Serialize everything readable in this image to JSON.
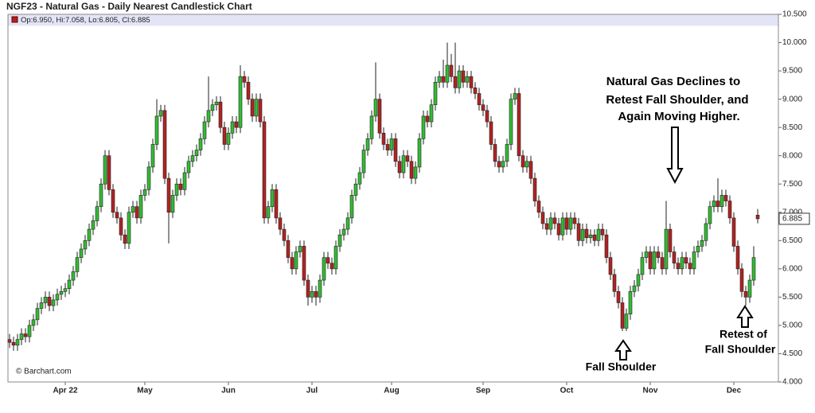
{
  "chart_data": {
    "type": "candlestick",
    "title": "NGF23 - Natural Gas - Daily Nearest Candlestick Chart",
    "legend": "Op:6.950, Hi:7.058, Lo:6.805, Cl:6.885",
    "watermark": "© Barchart.com",
    "annotations": [
      {
        "lines": [
          "Natural Gas Declines to",
          "Retest Fall Shoulder, and",
          "Again Moving Higher."
        ]
      },
      {
        "lines": [
          "Fall Shoulder"
        ]
      },
      {
        "lines": [
          "Retest of",
          "Fall Shoulder"
        ]
      }
    ],
    "up_color": "#33bb33",
    "down_color": "#b22222",
    "grid": false,
    "ylim": [
      4.0,
      10.5
    ],
    "yticks": [
      {
        "value": 4.0,
        "label": "4.000"
      },
      {
        "value": 4.5,
        "label": "4.500"
      },
      {
        "value": 5.0,
        "label": "5.000"
      },
      {
        "value": 5.5,
        "label": "5.500"
      },
      {
        "value": 6.0,
        "label": "6.000"
      },
      {
        "value": 6.5,
        "label": "6.500"
      },
      {
        "value": 7.0,
        "label": "7.000"
      },
      {
        "value": 7.5,
        "label": "7.500"
      },
      {
        "value": 8.0,
        "label": "8.000"
      },
      {
        "value": 8.5,
        "label": "8.500"
      },
      {
        "value": 9.0,
        "label": "9.000"
      },
      {
        "value": 9.5,
        "label": "9.500"
      },
      {
        "value": 10.0,
        "label": "10.000"
      },
      {
        "value": 10.5,
        "label": "10.500"
      }
    ],
    "categories": [
      null,
      null,
      null,
      null,
      null,
      null,
      null,
      null,
      null,
      null,
      null,
      null,
      null,
      null,
      "Apr 22",
      null,
      null,
      null,
      null,
      null,
      null,
      null,
      null,
      null,
      null,
      null,
      null,
      null,
      null,
      null,
      null,
      null,
      null,
      null,
      "May",
      null,
      null,
      null,
      null,
      null,
      null,
      null,
      null,
      null,
      null,
      null,
      null,
      null,
      null,
      null,
      null,
      null,
      null,
      null,
      null,
      "Jun",
      null,
      null,
      null,
      null,
      null,
      null,
      null,
      null,
      null,
      null,
      null,
      null,
      null,
      null,
      null,
      null,
      null,
      null,
      null,
      null,
      "Jul",
      null,
      null,
      null,
      null,
      null,
      null,
      null,
      null,
      null,
      null,
      null,
      null,
      null,
      null,
      null,
      null,
      null,
      null,
      null,
      "Aug",
      null,
      null,
      null,
      null,
      null,
      null,
      null,
      null,
      null,
      null,
      null,
      null,
      null,
      null,
      null,
      null,
      null,
      null,
      null,
      null,
      null,
      null,
      "Sep",
      null,
      null,
      null,
      null,
      null,
      null,
      null,
      null,
      null,
      null,
      null,
      null,
      null,
      null,
      null,
      null,
      null,
      null,
      null,
      null,
      "Oct",
      null,
      null,
      null,
      null,
      null,
      null,
      null,
      null,
      null,
      null,
      null,
      null,
      null,
      null,
      null,
      null,
      null,
      null,
      null,
      null,
      "Nov",
      null,
      null,
      null,
      null,
      null,
      null,
      null,
      null,
      null,
      null,
      null,
      null,
      null,
      null,
      null,
      null,
      null,
      null,
      null,
      null,
      "Dec",
      null,
      null,
      null,
      null,
      null,
      null
    ],
    "open": [
      4.75,
      4.7,
      4.65,
      4.75,
      4.85,
      4.8,
      5.0,
      5.1,
      5.3,
      5.4,
      5.5,
      5.35,
      5.45,
      5.55,
      5.6,
      5.65,
      5.8,
      5.95,
      6.2,
      6.35,
      6.5,
      6.7,
      6.85,
      7.1,
      7.5,
      8.0,
      7.4,
      7.0,
      6.9,
      6.6,
      6.45,
      7.0,
      7.1,
      6.9,
      7.3,
      7.4,
      7.8,
      8.2,
      8.7,
      8.8,
      7.6,
      7.0,
      7.3,
      7.5,
      7.4,
      7.7,
      7.9,
      8.0,
      8.1,
      8.3,
      8.6,
      8.8,
      8.9,
      8.95,
      8.5,
      8.2,
      8.4,
      8.6,
      8.5,
      9.4,
      9.3,
      9.0,
      8.7,
      9.0,
      8.6,
      6.9,
      7.1,
      7.4,
      6.9,
      6.7,
      6.5,
      6.2,
      6.0,
      6.3,
      6.4,
      5.8,
      5.5,
      5.6,
      5.5,
      5.8,
      6.2,
      6.1,
      6.0,
      6.4,
      6.6,
      6.7,
      6.9,
      7.3,
      7.5,
      7.7,
      8.1,
      8.3,
      8.7,
      9.0,
      8.4,
      8.2,
      8.1,
      8.3,
      7.9,
      7.7,
      8.0,
      7.9,
      7.6,
      7.8,
      8.3,
      8.7,
      8.6,
      8.9,
      9.3,
      9.4,
      9.3,
      9.6,
      9.4,
      9.2,
      9.5,
      9.3,
      9.4,
      9.2,
      9.1,
      8.9,
      8.8,
      8.6,
      8.2,
      7.9,
      7.8,
      7.9,
      8.2,
      9.0,
      9.1,
      8.0,
      7.8,
      7.9,
      7.6,
      7.2,
      7.0,
      6.8,
      6.7,
      6.9,
      6.8,
      6.6,
      6.9,
      6.7,
      6.9,
      6.8,
      6.5,
      6.7,
      6.55,
      6.6,
      6.5,
      6.7,
      6.6,
      6.2,
      5.9,
      5.6,
      5.4,
      4.95,
      5.2,
      5.6,
      5.7,
      5.9,
      6.2,
      6.3,
      6.0,
      6.3,
      6.2,
      6.0,
      6.7,
      6.3,
      6.1,
      6.0,
      6.2,
      6.1,
      6.0,
      6.3,
      6.4,
      6.5,
      6.8,
      7.1,
      7.2,
      7.1,
      7.3,
      7.2,
      6.9,
      6.4,
      6.0,
      5.6,
      5.5,
      5.8,
      6.95
    ],
    "high": [
      4.85,
      4.8,
      4.85,
      4.95,
      4.95,
      5.1,
      5.2,
      5.4,
      5.5,
      5.6,
      5.6,
      5.55,
      5.65,
      5.7,
      5.75,
      5.9,
      6.05,
      6.3,
      6.45,
      6.6,
      6.8,
      6.95,
      7.2,
      7.6,
      8.1,
      8.1,
      7.5,
      7.1,
      7.0,
      6.7,
      7.1,
      7.2,
      7.2,
      7.4,
      7.5,
      7.9,
      8.3,
      9.0,
      8.9,
      8.9,
      7.7,
      7.4,
      7.6,
      7.6,
      7.8,
      8.0,
      8.1,
      8.2,
      8.4,
      8.7,
      9.4,
      9.0,
      9.05,
      9.05,
      8.6,
      8.5,
      8.7,
      8.7,
      9.6,
      9.5,
      9.4,
      9.1,
      9.1,
      9.1,
      8.7,
      7.2,
      7.5,
      7.5,
      7.0,
      6.8,
      6.6,
      6.3,
      6.4,
      6.5,
      6.5,
      5.9,
      5.7,
      5.7,
      5.9,
      6.3,
      6.3,
      6.2,
      6.5,
      6.7,
      6.8,
      7.0,
      7.4,
      7.6,
      7.8,
      8.2,
      8.4,
      8.8,
      9.65,
      9.1,
      8.5,
      8.3,
      8.4,
      8.4,
      8.0,
      8.1,
      8.1,
      8.0,
      7.9,
      8.4,
      8.8,
      8.8,
      9.0,
      9.4,
      9.5,
      9.7,
      10.0,
      9.8,
      10.0,
      9.6,
      9.6,
      9.5,
      9.5,
      9.3,
      9.2,
      9.0,
      8.9,
      8.7,
      8.3,
      8.0,
      8.0,
      8.3,
      9.1,
      9.2,
      9.2,
      8.1,
      8.0,
      8.0,
      7.7,
      7.3,
      7.1,
      6.9,
      7.0,
      7.0,
      6.9,
      7.0,
      7.0,
      7.0,
      7.0,
      6.9,
      6.8,
      6.8,
      6.7,
      6.7,
      6.8,
      6.8,
      6.7,
      6.3,
      6.0,
      5.7,
      5.5,
      5.3,
      5.7,
      5.8,
      6.0,
      6.3,
      6.4,
      6.4,
      6.4,
      6.4,
      6.3,
      7.2,
      6.8,
      6.4,
      6.2,
      6.3,
      6.3,
      6.2,
      6.4,
      6.5,
      6.6,
      6.9,
      7.2,
      7.3,
      7.6,
      7.4,
      7.4,
      7.3,
      7.0,
      6.5,
      6.1,
      5.7,
      5.9,
      6.4,
      7.058
    ],
    "low": [
      4.6,
      4.55,
      4.55,
      4.65,
      4.7,
      4.7,
      4.9,
      5.0,
      5.2,
      5.3,
      5.25,
      5.25,
      5.35,
      5.45,
      5.5,
      5.55,
      5.7,
      5.85,
      6.1,
      6.25,
      6.4,
      6.6,
      6.75,
      7.0,
      7.4,
      7.3,
      6.9,
      6.8,
      6.5,
      6.35,
      6.35,
      6.9,
      6.8,
      6.8,
      7.2,
      7.3,
      7.7,
      8.1,
      8.6,
      7.5,
      6.45,
      6.9,
      7.2,
      7.3,
      7.3,
      7.6,
      7.8,
      7.9,
      8.0,
      8.2,
      8.5,
      8.7,
      8.8,
      8.4,
      8.1,
      8.1,
      8.3,
      8.4,
      8.4,
      9.2,
      8.9,
      8.6,
      8.6,
      8.5,
      6.8,
      6.8,
      7.0,
      6.8,
      6.6,
      6.4,
      6.1,
      5.9,
      5.9,
      6.2,
      5.7,
      5.35,
      5.4,
      5.35,
      5.4,
      5.7,
      6.0,
      5.9,
      5.9,
      6.3,
      6.5,
      6.6,
      6.8,
      7.2,
      7.4,
      7.6,
      8.0,
      8.2,
      8.6,
      8.3,
      8.1,
      8.0,
      8.0,
      7.8,
      7.6,
      7.6,
      7.8,
      7.5,
      7.5,
      7.7,
      8.2,
      8.5,
      8.5,
      8.8,
      9.2,
      9.2,
      9.2,
      9.3,
      9.1,
      9.1,
      9.2,
      9.2,
      9.1,
      9.0,
      8.8,
      8.7,
      8.5,
      8.1,
      7.8,
      7.7,
      7.7,
      7.8,
      8.1,
      8.9,
      7.9,
      7.7,
      7.7,
      7.5,
      7.1,
      6.9,
      6.7,
      6.6,
      6.6,
      6.7,
      6.5,
      6.5,
      6.6,
      6.6,
      6.7,
      6.4,
      6.4,
      6.45,
      6.45,
      6.4,
      6.4,
      6.5,
      6.1,
      5.8,
      5.5,
      5.3,
      4.9,
      4.9,
      5.1,
      5.5,
      5.6,
      5.8,
      6.1,
      5.9,
      5.9,
      6.1,
      5.9,
      5.9,
      6.2,
      6.0,
      5.9,
      5.9,
      6.0,
      5.9,
      5.9,
      6.2,
      6.3,
      6.4,
      6.7,
      7.0,
      7.0,
      7.0,
      7.1,
      6.8,
      6.3,
      5.9,
      5.5,
      5.35,
      5.4,
      5.7,
      6.805
    ],
    "close": [
      4.7,
      4.65,
      4.75,
      4.85,
      4.8,
      5.0,
      5.1,
      5.3,
      5.4,
      5.5,
      5.35,
      5.45,
      5.55,
      5.6,
      5.65,
      5.8,
      5.95,
      6.2,
      6.35,
      6.5,
      6.7,
      6.85,
      7.1,
      7.5,
      8.0,
      7.4,
      7.0,
      6.9,
      6.6,
      6.45,
      7.0,
      7.1,
      6.9,
      7.3,
      7.4,
      7.8,
      8.2,
      8.7,
      8.8,
      7.6,
      7.0,
      7.3,
      7.5,
      7.4,
      7.7,
      7.9,
      8.0,
      8.1,
      8.3,
      8.6,
      8.8,
      8.9,
      8.95,
      8.5,
      8.2,
      8.4,
      8.6,
      8.5,
      9.4,
      9.3,
      9.0,
      8.7,
      9.0,
      8.6,
      6.9,
      7.1,
      7.4,
      6.9,
      6.7,
      6.5,
      6.2,
      6.0,
      6.3,
      6.4,
      5.8,
      5.5,
      5.6,
      5.5,
      5.8,
      6.2,
      6.1,
      6.0,
      6.4,
      6.6,
      6.7,
      6.9,
      7.3,
      7.5,
      7.7,
      8.1,
      8.3,
      8.7,
      9.0,
      8.4,
      8.2,
      8.1,
      8.3,
      7.9,
      7.7,
      8.0,
      7.9,
      7.6,
      7.8,
      8.3,
      8.7,
      8.6,
      8.9,
      9.3,
      9.4,
      9.3,
      9.6,
      9.4,
      9.2,
      9.5,
      9.3,
      9.4,
      9.2,
      9.1,
      8.9,
      8.8,
      8.6,
      8.2,
      7.9,
      7.8,
      7.9,
      8.2,
      9.0,
      9.1,
      8.0,
      7.8,
      7.9,
      7.6,
      7.2,
      7.0,
      6.8,
      6.7,
      6.9,
      6.8,
      6.6,
      6.9,
      6.7,
      6.9,
      6.8,
      6.5,
      6.7,
      6.55,
      6.6,
      6.5,
      6.7,
      6.6,
      6.2,
      5.9,
      5.6,
      5.4,
      4.95,
      5.2,
      5.6,
      5.7,
      5.9,
      6.2,
      6.3,
      6.0,
      6.3,
      6.2,
      6.0,
      6.7,
      6.3,
      6.1,
      6.0,
      6.2,
      6.1,
      6.0,
      6.3,
      6.4,
      6.5,
      6.8,
      7.1,
      7.2,
      7.1,
      7.3,
      7.2,
      6.9,
      6.4,
      6.0,
      5.6,
      5.5,
      5.8,
      6.2,
      6.885
    ]
  }
}
